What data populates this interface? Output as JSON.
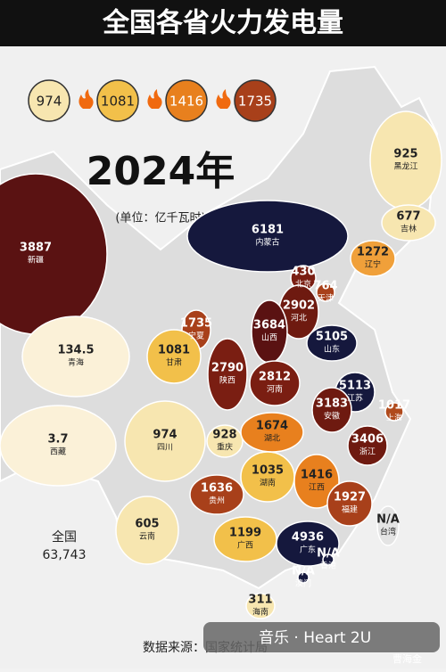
{
  "header": {
    "title": "全国各省火力发电量"
  },
  "legend": [
    {
      "value": 974,
      "color": "#f7e6b0"
    },
    {
      "value": 1081,
      "color": "#f2c04a"
    },
    {
      "value": 1416,
      "color": "#e8801e"
    },
    {
      "value": 1735,
      "color": "#a8401a"
    }
  ],
  "year": "2024年",
  "unit": "(单位：亿千瓦时)",
  "provinces": [
    {
      "name": "新疆",
      "value": 3887,
      "color": "#5a1212"
    },
    {
      "name": "内蒙古",
      "value": 6181,
      "color": "#15183d"
    },
    {
      "name": "黑龙江",
      "value": 925,
      "color": "#f7e6b0"
    },
    {
      "name": "吉林",
      "value": 677,
      "color": "#f7e6b0"
    },
    {
      "name": "辽宁",
      "value": 1272,
      "color": "#f0a03a"
    },
    {
      "name": "北京",
      "value": 430,
      "color": "#7a1e12"
    },
    {
      "name": "天津",
      "value": 764,
      "color": "#a8401a"
    },
    {
      "name": "河北",
      "value": 2902,
      "color": "#6e1a10"
    },
    {
      "name": "山西",
      "value": 3684,
      "color": "#5a1212"
    },
    {
      "name": "宁夏",
      "value": 1735,
      "color": "#a8401a"
    },
    {
      "name": "甘肃",
      "value": 1081,
      "color": "#f2c04a"
    },
    {
      "name": "青海",
      "value": 134.5,
      "color": "#fbf1d8"
    },
    {
      "name": "山东",
      "value": 5105,
      "color": "#15183d"
    },
    {
      "name": "陕西",
      "value": 2790,
      "color": "#7a1e12"
    },
    {
      "name": "河南",
      "value": 2812,
      "color": "#7a1e12"
    },
    {
      "name": "江苏",
      "value": 5113,
      "color": "#15183d"
    },
    {
      "name": "上海",
      "value": 1017,
      "color": "#b04a1c"
    },
    {
      "name": "安徽",
      "value": 3183,
      "color": "#6e1a10"
    },
    {
      "name": "西藏",
      "value": 3.7,
      "color": "#fbf1d8"
    },
    {
      "name": "四川",
      "value": 974,
      "color": "#f7e6b0"
    },
    {
      "name": "重庆",
      "value": 928,
      "color": "#f7e6b0"
    },
    {
      "name": "湖北",
      "value": 1674,
      "color": "#e8801e"
    },
    {
      "name": "浙江",
      "value": 3406,
      "color": "#6e1a10"
    },
    {
      "name": "湖南",
      "value": 1035,
      "color": "#f2c04a"
    },
    {
      "name": "江西",
      "value": 1416,
      "color": "#e8801e"
    },
    {
      "name": "贵州",
      "value": 1636,
      "color": "#a8401a"
    },
    {
      "name": "福建",
      "value": 1927,
      "color": "#a8401a"
    },
    {
      "name": "云南",
      "value": 605,
      "color": "#f7e6b0"
    },
    {
      "name": "广西",
      "value": 1199,
      "color": "#f2c04a"
    },
    {
      "name": "广东",
      "value": 4936,
      "color": "#15183d"
    },
    {
      "name": "海南",
      "value": 311,
      "color": "#f7e6b0"
    },
    {
      "name": "台湾",
      "value": "N/A",
      "color": "#e4e4e4"
    },
    {
      "name": "香港",
      "value": "N/A",
      "color": "#15183d"
    },
    {
      "name": "澳门",
      "value": "N/A",
      "color": "#15183d"
    }
  ],
  "total": {
    "label": "全国",
    "value": 63743,
    "value_label": "63,743"
  },
  "source": "数据来源：国家统计局",
  "music": "音乐 · Heart 2U",
  "watermark": "曹海金"
}
